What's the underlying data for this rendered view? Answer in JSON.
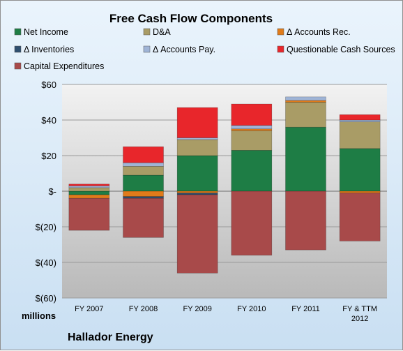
{
  "chart_data": {
    "type": "bar",
    "stacked": true,
    "title": "Free Cash Flow Components",
    "units_label": "millions",
    "company": "Hallador Energy",
    "categories": [
      [
        "FY 2007"
      ],
      [
        "FY 2008"
      ],
      [
        "FY 2009"
      ],
      [
        "FY 2010"
      ],
      [
        "FY 2011"
      ],
      [
        "FY & TTM",
        "2012"
      ]
    ],
    "ylim": [
      -60,
      60
    ],
    "yticks": [
      60,
      40,
      20,
      0,
      -20,
      -40,
      -60
    ],
    "ytick_labels": [
      "$60",
      "$40",
      "$20",
      "$-",
      "$(20)",
      "$(40)",
      "$(60)"
    ],
    "legend_position": "top",
    "series": [
      {
        "name": "Net Income",
        "color": "#1e7d45",
        "values": [
          -2,
          9,
          20,
          23,
          36,
          24
        ]
      },
      {
        "name": "D&A",
        "color": "#a99c66",
        "values": [
          2,
          5,
          9,
          11,
          14,
          15
        ]
      },
      {
        "name": "Δ Accounts Rec.",
        "color": "#e07b1a",
        "values": [
          -2,
          -3,
          -1,
          1,
          1,
          -1
        ]
      },
      {
        "name": "Δ Inventories",
        "color": "#2f4f6f",
        "values": [
          0,
          -1,
          -1,
          0,
          0,
          0
        ]
      },
      {
        "name": "Δ Accounts Pay.",
        "color": "#9fb4d6",
        "values": [
          1,
          2,
          1,
          2,
          2,
          1
        ]
      },
      {
        "name": "Questionable Cash Sources",
        "color": "#e8262b",
        "values": [
          1,
          9,
          17,
          12,
          0,
          3
        ]
      },
      {
        "name": "Capital Expenditures",
        "color": "#a84a4a",
        "values": [
          -18,
          -22,
          -44,
          -36,
          -33,
          -27
        ]
      }
    ]
  }
}
